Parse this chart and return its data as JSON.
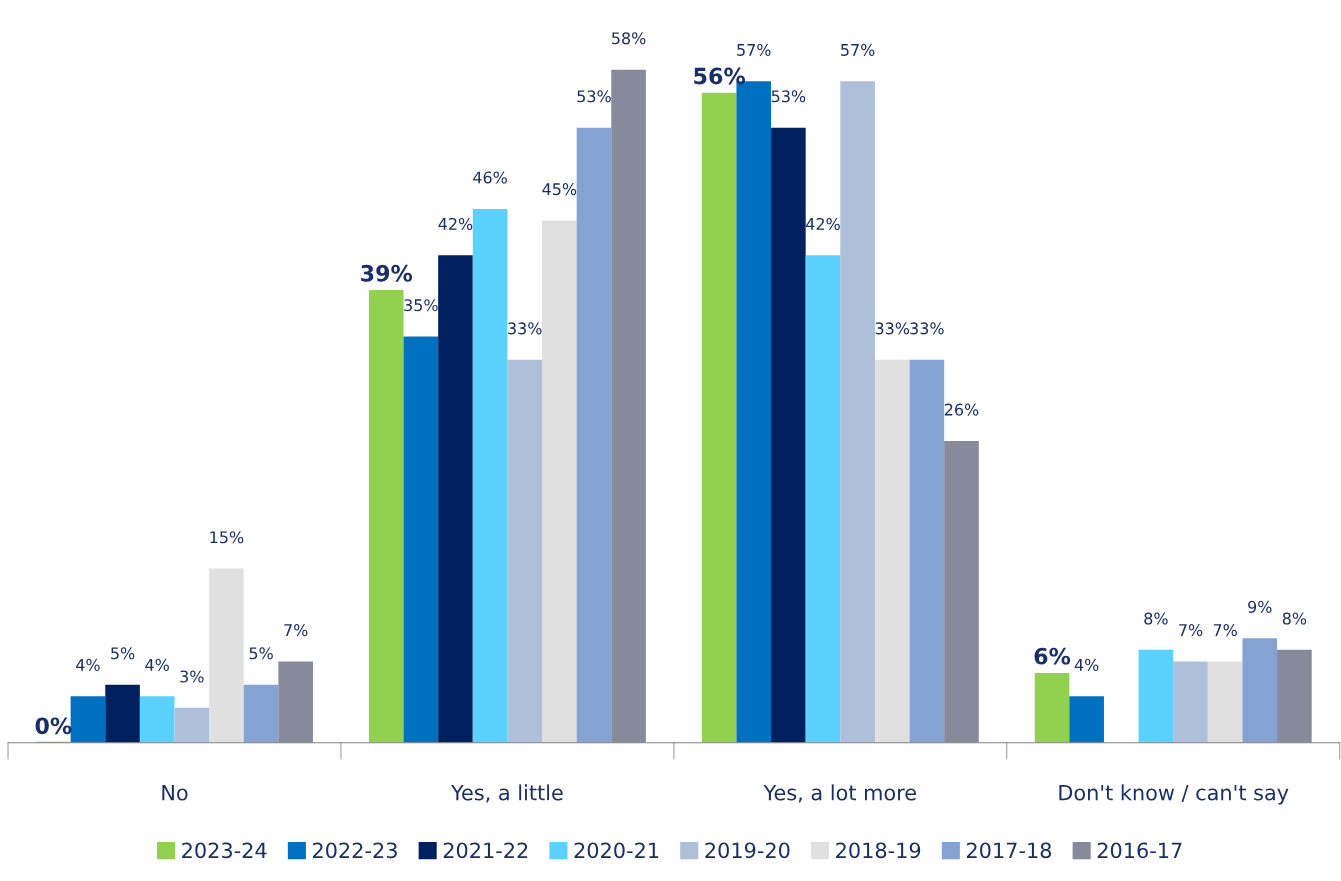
{
  "chart_data": {
    "type": "bar",
    "categories": [
      "No",
      "Yes, a little",
      "Yes, a lot more",
      "Don't know / can't say"
    ],
    "series": [
      {
        "name": "2023-24",
        "color": "#92d050",
        "values": [
          0,
          39,
          56,
          6
        ],
        "value_labels": [
          "0%",
          "39%",
          "56%",
          "6%"
        ]
      },
      {
        "name": "2022-23",
        "color": "#0070c0",
        "values": [
          4,
          35,
          57,
          4
        ],
        "value_labels": [
          "4%",
          "35%",
          "57%",
          "4%"
        ]
      },
      {
        "name": "2021-22",
        "color": "#002060",
        "values": [
          5,
          42,
          53,
          null
        ],
        "value_labels": [
          "5%",
          "42%",
          "53%",
          null
        ]
      },
      {
        "name": "2020-21",
        "color": "#5bd1ff",
        "values": [
          4,
          46,
          42,
          8
        ],
        "value_labels": [
          "4%",
          "46%",
          "42%",
          "8%"
        ]
      },
      {
        "name": "2019-20",
        "color": "#adbfd9",
        "values": [
          3,
          33,
          57,
          7
        ],
        "value_labels": [
          "3%",
          "33%",
          "57%",
          "7%"
        ]
      },
      {
        "name": "2018-19",
        "color": "#e0e0e0",
        "values": [
          15,
          45,
          33,
          7
        ],
        "value_labels": [
          "15%",
          "45%",
          "33%",
          "7%"
        ]
      },
      {
        "name": "2017-18",
        "color": "#85a3d2",
        "values": [
          5,
          53,
          33,
          9
        ],
        "value_labels": [
          "5%",
          "53%",
          "33%",
          "9%"
        ]
      },
      {
        "name": "2016-17",
        "color": "#868a9b",
        "values": [
          7,
          58,
          26,
          8
        ],
        "value_labels": [
          "7%",
          "58%",
          "26%",
          "8%"
        ]
      }
    ],
    "legend": "bottom",
    "grid": false
  }
}
